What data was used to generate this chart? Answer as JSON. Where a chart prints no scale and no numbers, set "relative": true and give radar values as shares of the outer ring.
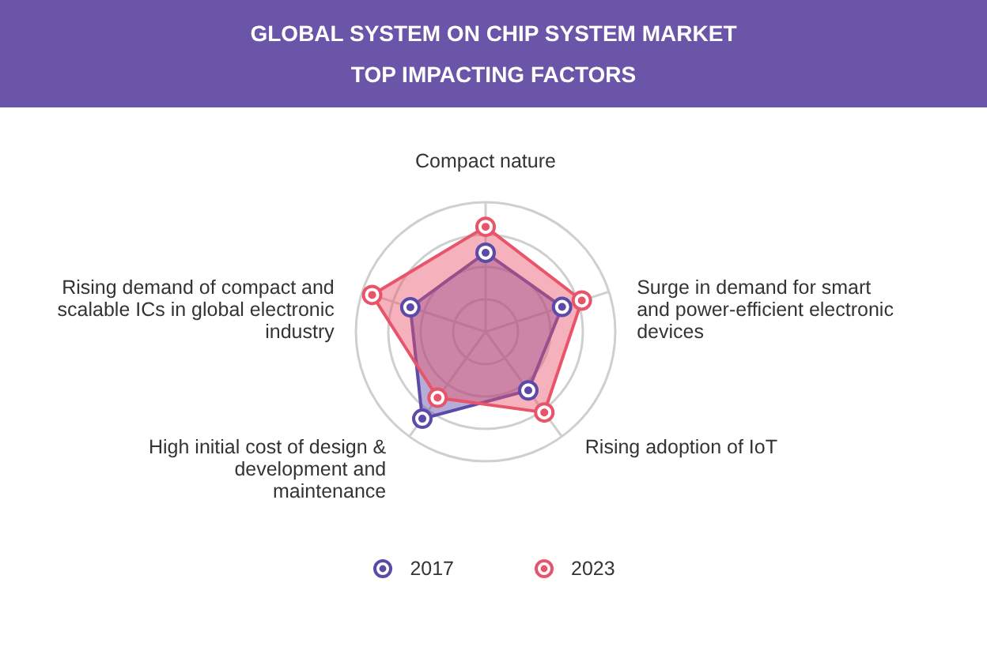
{
  "chart_data": {
    "type": "radar",
    "title": "GLOBAL SYSTEM ON CHIP SYSTEM MARKET",
    "subtitle": "TOP IMPACTING FACTORS",
    "relative": true,
    "categories": [
      "Compact nature",
      "Surge in demand for smart\nand power-efficient electronic\ndevices",
      "Rising adoption of IoT",
      "High initial cost of design &\ndevelopment and\nmaintenance",
      "Rising demand of compact and\nscalable ICs in global electronic\nindustry"
    ],
    "series": [
      {
        "name": "2017",
        "color": "#5b4aa8",
        "values": [
          0.61,
          0.62,
          0.56,
          0.83,
          0.61
        ]
      },
      {
        "name": "2023",
        "color": "#e8546a",
        "values": [
          0.81,
          0.78,
          0.77,
          0.63,
          0.92
        ]
      }
    ],
    "grid": true,
    "legend": "bottom",
    "marker": "circle"
  }
}
